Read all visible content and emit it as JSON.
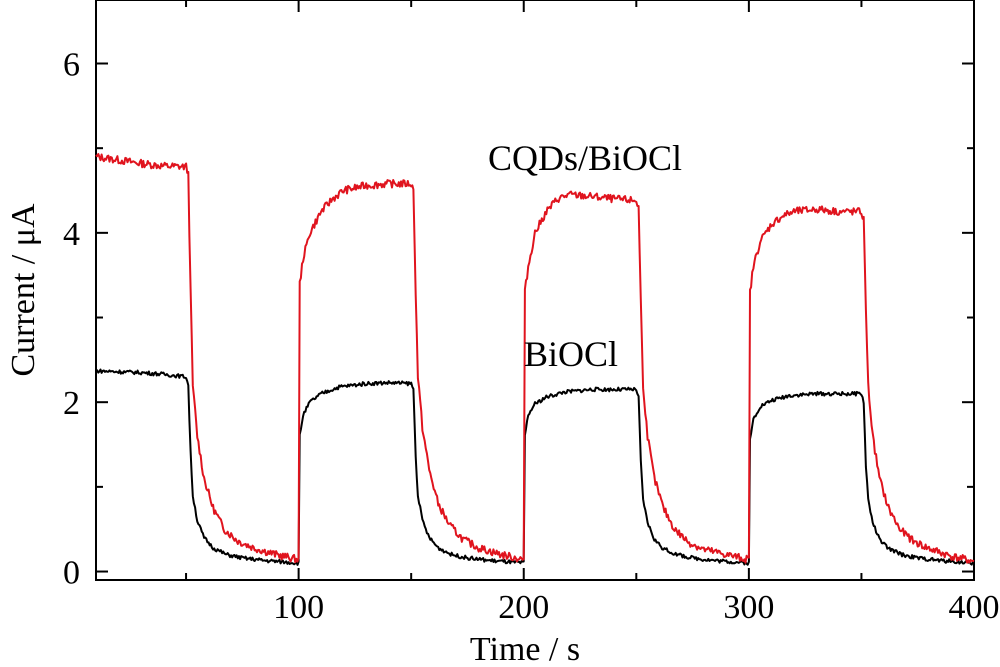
{
  "chart_data": {
    "type": "line",
    "xlabel": "Time / s",
    "ylabel": "Current / μA",
    "xlim": [
      10,
      400
    ],
    "ylim": [
      -0.1,
      6.75
    ],
    "x_ticks": [
      100,
      200,
      300,
      400
    ],
    "x_tick_labels": [
      "100",
      "200",
      "300",
      "400"
    ],
    "y_ticks": [
      0,
      2,
      4,
      6
    ],
    "y_tick_labels": [
      "0",
      "2",
      "4",
      "6"
    ],
    "grid": false,
    "legend": "none (inline series labels)",
    "series": [
      {
        "name": "CQDs/BiOCl",
        "color": "#e0141e",
        "points": [
          [
            10,
            4.9
          ],
          [
            20,
            4.86
          ],
          [
            30,
            4.82
          ],
          [
            40,
            4.79
          ],
          [
            50,
            4.78
          ],
          [
            51,
            4.7
          ],
          [
            52,
            3.3
          ],
          [
            53,
            2.2
          ],
          [
            55,
            1.6
          ],
          [
            58,
            1.1
          ],
          [
            62,
            0.75
          ],
          [
            67,
            0.5
          ],
          [
            73,
            0.36
          ],
          [
            80,
            0.28
          ],
          [
            90,
            0.2
          ],
          [
            100,
            0.14
          ],
          [
            100.5,
            3.4
          ],
          [
            102,
            3.7
          ],
          [
            105,
            4.0
          ],
          [
            110,
            4.25
          ],
          [
            115,
            4.4
          ],
          [
            120,
            4.5
          ],
          [
            130,
            4.56
          ],
          [
            140,
            4.58
          ],
          [
            150,
            4.58
          ],
          [
            151,
            4.5
          ],
          [
            152,
            3.3
          ],
          [
            153,
            2.3
          ],
          [
            155,
            1.7
          ],
          [
            158,
            1.2
          ],
          [
            162,
            0.8
          ],
          [
            167,
            0.55
          ],
          [
            173,
            0.38
          ],
          [
            180,
            0.28
          ],
          [
            190,
            0.2
          ],
          [
            200,
            0.14
          ],
          [
            200.5,
            3.3
          ],
          [
            202,
            3.6
          ],
          [
            205,
            4.0
          ],
          [
            210,
            4.25
          ],
          [
            215,
            4.4
          ],
          [
            220,
            4.45
          ],
          [
            230,
            4.43
          ],
          [
            240,
            4.4
          ],
          [
            250,
            4.38
          ],
          [
            251,
            4.3
          ],
          [
            252,
            3.2
          ],
          [
            253,
            2.2
          ],
          [
            255,
            1.6
          ],
          [
            258,
            1.1
          ],
          [
            262,
            0.75
          ],
          [
            267,
            0.5
          ],
          [
            273,
            0.35
          ],
          [
            280,
            0.26
          ],
          [
            290,
            0.2
          ],
          [
            300,
            0.14
          ],
          [
            300.5,
            3.3
          ],
          [
            302,
            3.6
          ],
          [
            305,
            3.9
          ],
          [
            310,
            4.1
          ],
          [
            315,
            4.2
          ],
          [
            320,
            4.25
          ],
          [
            330,
            4.28
          ],
          [
            340,
            4.25
          ],
          [
            350,
            4.25
          ],
          [
            351,
            4.15
          ],
          [
            352,
            3.1
          ],
          [
            353,
            2.2
          ],
          [
            355,
            1.6
          ],
          [
            358,
            1.1
          ],
          [
            362,
            0.75
          ],
          [
            367,
            0.5
          ],
          [
            373,
            0.36
          ],
          [
            380,
            0.27
          ],
          [
            390,
            0.18
          ],
          [
            400,
            0.12
          ]
        ]
      },
      {
        "name": "BiOCl",
        "color": "#000000",
        "points": [
          [
            10,
            2.37
          ],
          [
            20,
            2.36
          ],
          [
            30,
            2.35
          ],
          [
            40,
            2.33
          ],
          [
            50,
            2.3
          ],
          [
            51,
            2.2
          ],
          [
            52,
            1.4
          ],
          [
            53,
            0.9
          ],
          [
            55,
            0.6
          ],
          [
            58,
            0.4
          ],
          [
            62,
            0.28
          ],
          [
            68,
            0.2
          ],
          [
            75,
            0.16
          ],
          [
            85,
            0.13
          ],
          [
            100,
            0.1
          ],
          [
            100.5,
            1.6
          ],
          [
            102,
            1.85
          ],
          [
            105,
            2.0
          ],
          [
            110,
            2.1
          ],
          [
            118,
            2.18
          ],
          [
            130,
            2.22
          ],
          [
            140,
            2.23
          ],
          [
            150,
            2.22
          ],
          [
            151,
            2.15
          ],
          [
            152,
            1.35
          ],
          [
            153,
            0.9
          ],
          [
            155,
            0.6
          ],
          [
            158,
            0.4
          ],
          [
            162,
            0.28
          ],
          [
            168,
            0.2
          ],
          [
            175,
            0.16
          ],
          [
            185,
            0.13
          ],
          [
            200,
            0.1
          ],
          [
            200.5,
            1.6
          ],
          [
            202,
            1.85
          ],
          [
            205,
            1.98
          ],
          [
            210,
            2.06
          ],
          [
            218,
            2.12
          ],
          [
            230,
            2.15
          ],
          [
            240,
            2.15
          ],
          [
            250,
            2.15
          ],
          [
            251,
            2.05
          ],
          [
            252,
            1.3
          ],
          [
            253,
            0.85
          ],
          [
            255,
            0.58
          ],
          [
            258,
            0.38
          ],
          [
            262,
            0.27
          ],
          [
            268,
            0.2
          ],
          [
            275,
            0.16
          ],
          [
            285,
            0.13
          ],
          [
            300,
            0.1
          ],
          [
            300.5,
            1.55
          ],
          [
            302,
            1.8
          ],
          [
            305,
            1.95
          ],
          [
            310,
            2.02
          ],
          [
            318,
            2.08
          ],
          [
            330,
            2.1
          ],
          [
            340,
            2.1
          ],
          [
            350,
            2.1
          ],
          [
            351,
            2.0
          ],
          [
            352,
            1.25
          ],
          [
            353,
            0.85
          ],
          [
            355,
            0.58
          ],
          [
            358,
            0.38
          ],
          [
            362,
            0.27
          ],
          [
            368,
            0.2
          ],
          [
            375,
            0.16
          ],
          [
            385,
            0.13
          ],
          [
            400,
            0.1
          ]
        ]
      }
    ]
  }
}
